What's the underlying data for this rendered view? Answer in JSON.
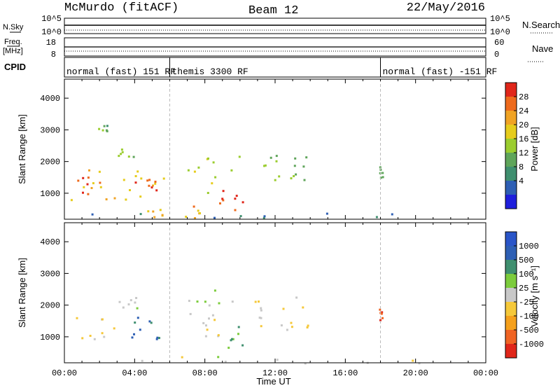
{
  "header": {
    "station": "McMurdo (fitACF)",
    "beam": "Beam 12",
    "date": "22/May/2016"
  },
  "noise_panel": {
    "left_label": "N.Sky",
    "right_label": "N.Search",
    "left_ticks": [
      "10^5",
      "10^0"
    ],
    "right_ticks": [
      "10^5",
      "10^0"
    ]
  },
  "freq_panel": {
    "left_label_top": "Freq.",
    "left_label_unit": "[MHz]",
    "left_ticks": [
      "18",
      "8"
    ],
    "right_label": "Nave",
    "right_ticks": [
      "60",
      "0"
    ]
  },
  "cpid_panel": {
    "label": "CPID",
    "segments": [
      {
        "start_h": 0,
        "end_h": 6,
        "text": "normal (fast) 151 RF"
      },
      {
        "start_h": 6,
        "end_h": 18,
        "text": "themis 3300 RF"
      },
      {
        "start_h": 18,
        "end_h": 24,
        "text": "normal (fast) -151 RF"
      }
    ]
  },
  "colors": {
    "power_scale": [
      "#1f1fdc",
      "#2e5fb4",
      "#3f8f6f",
      "#5fa55a",
      "#9bcd2f",
      "#e6cc1c",
      "#f0a324",
      "#ee6a1c",
      "#e0261a"
    ],
    "velocity_scale": [
      "#e0261a",
      "#f06424",
      "#f5a01c",
      "#f5c83a",
      "#c8c8c8",
      "#7ccc3c",
      "#3f8f6f",
      "#2e5fb4",
      "#2a55c8"
    ]
  },
  "colorbars": {
    "power": {
      "label": "Power [dB]",
      "ticks": [
        "28",
        "24",
        "20",
        "16",
        "12",
        "8",
        "4"
      ]
    },
    "velocity": {
      "label": "Velocity [m s⁻¹]",
      "ticks": [
        "1000",
        "500",
        "100",
        "25",
        "-25",
        "-100",
        "-500",
        "-1000"
      ]
    }
  },
  "chart_data": {
    "type": "heatmap",
    "title": "McMurdo (fitACF)  Beam 12  22/May/2016",
    "xlabel": "Time UT",
    "ylabel": "Slant Range [km]",
    "x_ticks": [
      "00:00",
      "04:00",
      "08:00",
      "12:00",
      "16:00",
      "20:00",
      "00:00"
    ],
    "y_ticks": [
      "1000",
      "2000",
      "3000",
      "4000"
    ],
    "xlim_hours": [
      0,
      24
    ],
    "ylim_km": [
      180,
      4600
    ],
    "mode_change_hours": [
      6,
      18
    ],
    "panels": [
      {
        "name": "Power",
        "units": "dB",
        "clim": [
          0,
          30
        ],
        "regions": [
          {
            "t": [
              0.3,
              2.9
            ],
            "r": [
              800,
              1800
            ],
            "v": 19
          },
          {
            "t": [
              0.7,
              2.6
            ],
            "r": [
              1000,
              1550
            ],
            "v": 26
          },
          {
            "t": [
              2.9,
              6.0
            ],
            "r": [
              700,
              1800
            ],
            "v": 18
          },
          {
            "t": [
              3.4,
              5.6
            ],
            "r": [
              900,
              1500
            ],
            "v": 27
          },
          {
            "t": [
              6.3,
              7.8
            ],
            "r": [
              200,
              700
            ],
            "v": 21
          },
          {
            "t": [
              7.0,
              10.2
            ],
            "r": [
              900,
              2200
            ],
            "v": 16
          },
          {
            "t": [
              8.8,
              10.3
            ],
            "r": [
              500,
              1500
            ],
            "v": 27
          },
          {
            "t": [
              4.6,
              5.8
            ],
            "r": [
              250,
              600
            ],
            "v": 22
          },
          {
            "t": [
              2.8,
              3.9
            ],
            "r": [
              2150,
              2450
            ],
            "v": 14
          },
          {
            "t": [
              1.8,
              2.6
            ],
            "r": [
              2900,
              3200
            ],
            "v": 11
          },
          {
            "t": [
              11.2,
              12.3
            ],
            "r": [
              1400,
              2300
            ],
            "v": 14
          },
          {
            "t": [
              12.6,
              14.0
            ],
            "r": [
              1300,
              2300
            ],
            "v": 13
          },
          {
            "t": [
              17.9,
              18.1
            ],
            "r": [
              1500,
              1900
            ],
            "v": 12
          },
          {
            "t": [
              0.0,
              24.0
            ],
            "r": [
              180,
              400
            ],
            "v": 6
          }
        ]
      },
      {
        "name": "Velocity",
        "units": "m/s",
        "clim": [
          -1000,
          1000
        ],
        "regions": [
          {
            "t": [
              0.3,
              2.8
            ],
            "r": [
              800,
              1800
            ],
            "v": -150
          },
          {
            "t": [
              2.8,
              6.0
            ],
            "r": [
              700,
              1800
            ],
            "v": 600
          },
          {
            "t": [
              3.0,
              4.3
            ],
            "r": [
              1900,
              2300
            ],
            "v": 0
          },
          {
            "t": [
              6.8,
              9.8
            ],
            "r": [
              1300,
              2500
            ],
            "v": 60
          },
          {
            "t": [
              9.2,
              10.2
            ],
            "r": [
              600,
              1400
            ],
            "v": 400
          },
          {
            "t": [
              8.0,
              9.0
            ],
            "r": [
              1000,
              1800
            ],
            "v": -80
          },
          {
            "t": [
              10.8,
              12.4
            ],
            "r": [
              1300,
              2200
            ],
            "v": -120
          },
          {
            "t": [
              12.4,
              14.2
            ],
            "r": [
              1200,
              2300
            ],
            "v": -130
          },
          {
            "t": [
              17.9,
              18.1
            ],
            "r": [
              1500,
              1900
            ],
            "v": -800
          },
          {
            "t": [
              0.0,
              24.0
            ],
            "r": [
              180,
              400
            ],
            "v": 20
          }
        ]
      }
    ]
  }
}
